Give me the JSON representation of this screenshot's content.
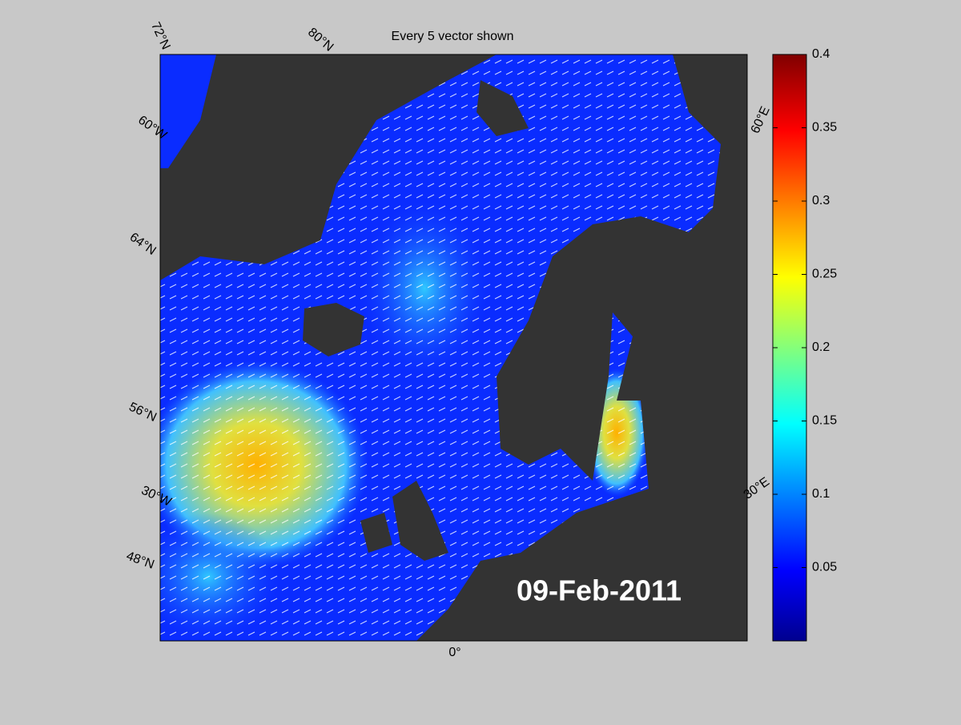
{
  "map": {
    "title": "Every 5 vector shown",
    "date": "09-Feb-2011",
    "grid_labels": [
      "72°N",
      "80°N",
      "60°W",
      "64°N",
      "56°N",
      "30°W",
      "48°N",
      "0°",
      "60°E",
      "30°E"
    ]
  },
  "colorbar": {
    "ylim": [
      0,
      0.4
    ],
    "yticks": [
      0.05,
      0.1,
      0.15,
      0.2,
      0.25,
      0.3,
      0.35,
      0.4
    ]
  }
}
